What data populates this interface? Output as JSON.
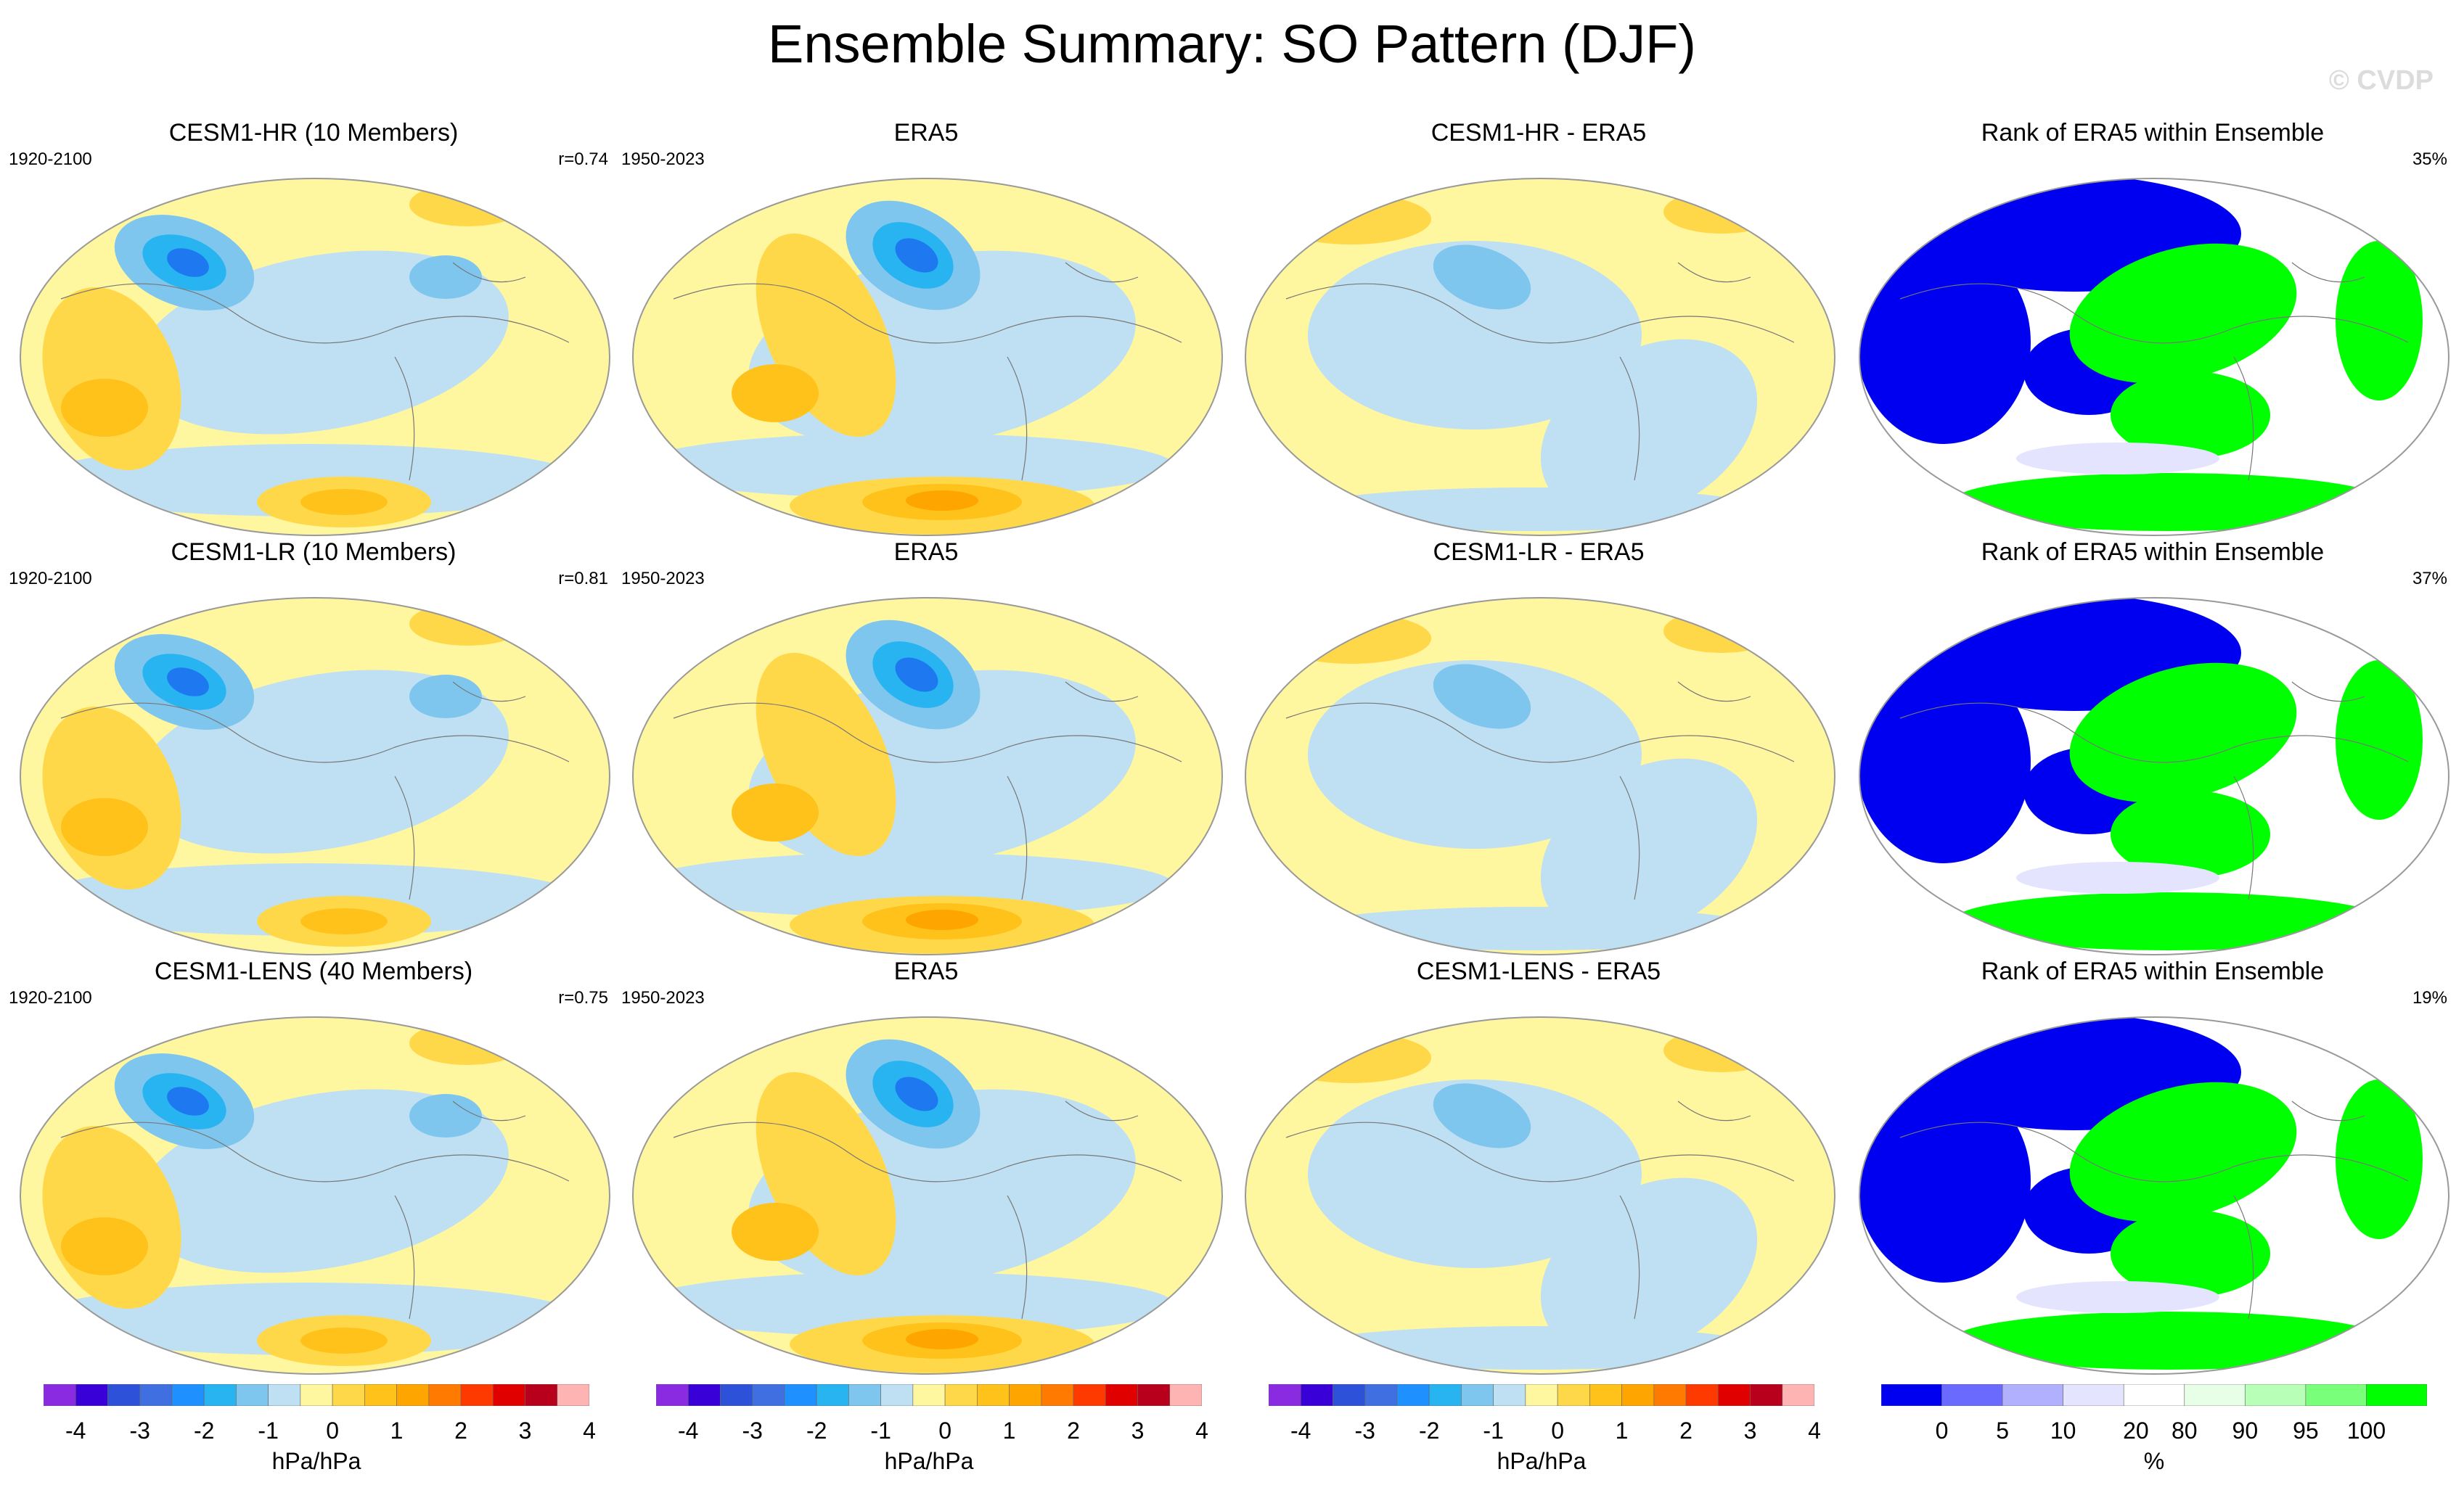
{
  "title": "Ensemble Summary: SO Pattern (DJF)",
  "watermark": "© CVDP",
  "colors": {
    "diverging": [
      "#8a2be2",
      "#3a00d8",
      "#2d52d9",
      "#3f6fe0",
      "#1e90ff",
      "#28b4f0",
      "#7fc6ee",
      "#bfe0f2",
      "#fff6a0",
      "#ffd84a",
      "#ffc21a",
      "#ffa500",
      "#ff7a00",
      "#ff3a00",
      "#e00000",
      "#b8001c",
      "#ffb4b4"
    ],
    "rank": [
      "#0000f0",
      "#6a6aff",
      "#b0b0ff",
      "#e4e4ff",
      "#ffffff",
      "#e6ffe6",
      "#b8ffb8",
      "#7aff7a",
      "#00ff00"
    ],
    "ocean_neutral": "#fff6a0",
    "neg_light": "#bfe0f2",
    "neg_mid": "#7fc6ee",
    "neg_strong": "#28b4f0",
    "neg_core": "#1e78f0",
    "pos_light": "#ffd84a",
    "pos_mid": "#ffc21a",
    "pos_strong": "#ffa500"
  },
  "chart_data": [
    {
      "type": "heatmap",
      "row": 1,
      "col": 1,
      "title": "CESM1-HR (10 Members)",
      "left_label": "1920-2100",
      "right_label": "r=0.74",
      "colorbar": "diverging",
      "pattern": "model"
    },
    {
      "type": "heatmap",
      "row": 1,
      "col": 2,
      "title": "ERA5",
      "left_label": "1950-2023",
      "right_label": "",
      "colorbar": "diverging",
      "pattern": "obs"
    },
    {
      "type": "heatmap",
      "row": 1,
      "col": 3,
      "title": "CESM1-HR - ERA5",
      "left_label": "",
      "right_label": "",
      "colorbar": "diverging",
      "pattern": "diff"
    },
    {
      "type": "heatmap",
      "row": 1,
      "col": 4,
      "title": "Rank of ERA5 within Ensemble",
      "left_label": "",
      "right_label": "35%",
      "colorbar": "rank",
      "pattern": "rank"
    },
    {
      "type": "heatmap",
      "row": 2,
      "col": 1,
      "title": "CESM1-LR (10 Members)",
      "left_label": "1920-2100",
      "right_label": "r=0.81",
      "colorbar": "diverging",
      "pattern": "model"
    },
    {
      "type": "heatmap",
      "row": 2,
      "col": 2,
      "title": "ERA5",
      "left_label": "1950-2023",
      "right_label": "",
      "colorbar": "diverging",
      "pattern": "obs"
    },
    {
      "type": "heatmap",
      "row": 2,
      "col": 3,
      "title": "CESM1-LR - ERA5",
      "left_label": "",
      "right_label": "",
      "colorbar": "diverging",
      "pattern": "diff"
    },
    {
      "type": "heatmap",
      "row": 2,
      "col": 4,
      "title": "Rank of ERA5 within Ensemble",
      "left_label": "",
      "right_label": "37%",
      "colorbar": "rank",
      "pattern": "rank"
    },
    {
      "type": "heatmap",
      "row": 3,
      "col": 1,
      "title": "CESM1-LENS (40 Members)",
      "left_label": "1920-2100",
      "right_label": "r=0.75",
      "colorbar": "diverging",
      "pattern": "model"
    },
    {
      "type": "heatmap",
      "row": 3,
      "col": 2,
      "title": "ERA5",
      "left_label": "1950-2023",
      "right_label": "",
      "colorbar": "diverging",
      "pattern": "obs"
    },
    {
      "type": "heatmap",
      "row": 3,
      "col": 3,
      "title": "CESM1-LENS - ERA5",
      "left_label": "",
      "right_label": "",
      "colorbar": "diverging",
      "pattern": "diff"
    },
    {
      "type": "heatmap",
      "row": 3,
      "col": 4,
      "title": "Rank of ERA5 within Ensemble",
      "left_label": "",
      "right_label": "19%",
      "colorbar": "rank",
      "pattern": "rank"
    }
  ],
  "colorbars": {
    "diverging": {
      "ticks": [
        "-4",
        "-3",
        "-2",
        "-1",
        "0",
        "1",
        "2",
        "3",
        "4"
      ],
      "unit": "hPa/hPa"
    },
    "rank": {
      "ticks": [
        "0",
        "5",
        "10",
        "20",
        "80",
        "90",
        "95",
        "100"
      ],
      "unit": "%"
    }
  }
}
